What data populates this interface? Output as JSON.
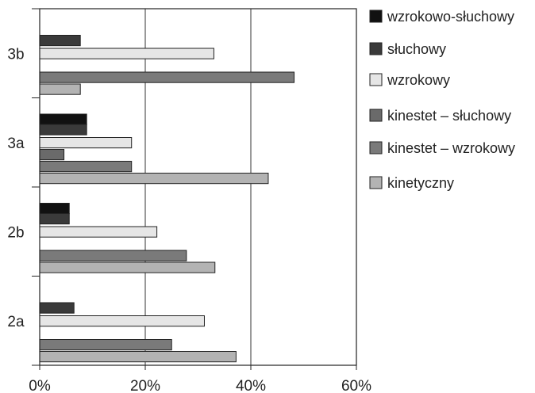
{
  "chart_data": {
    "type": "bar",
    "orientation": "horizontal",
    "title": "",
    "xlabel": "",
    "ylabel": "",
    "xlim": [
      0,
      60
    ],
    "x_ticks": [
      "0%",
      "20%",
      "40%",
      "60%"
    ],
    "x_tick_values": [
      0,
      20,
      40,
      60
    ],
    "grid": "vertical",
    "legend_position": "right",
    "categories": [
      "3b",
      "3a",
      "2b",
      "2a"
    ],
    "series": [
      {
        "name": "wzrokowo-słuchowy",
        "color": "#111111",
        "values": [
          0,
          8.9,
          5.6,
          0
        ]
      },
      {
        "name": "słuchowy",
        "color": "#3a3a3a",
        "values": [
          7.7,
          8.9,
          5.6,
          6.5
        ]
      },
      {
        "name": "wzrokowy",
        "color": "#e6e6e6",
        "values": [
          33.0,
          17.4,
          22.2,
          31.2
        ]
      },
      {
        "name": "kinestet – słuchowy",
        "color": "#6a6a6a",
        "values": [
          0,
          4.6,
          0,
          0
        ]
      },
      {
        "name": "kinestet – wzrokowy",
        "color": "#7a7a7a",
        "values": [
          48.2,
          17.4,
          27.8,
          25.0
        ]
      },
      {
        "name": "kinetyczny",
        "color": "#b3b3b3",
        "values": [
          7.7,
          43.3,
          33.2,
          37.2
        ]
      }
    ]
  }
}
